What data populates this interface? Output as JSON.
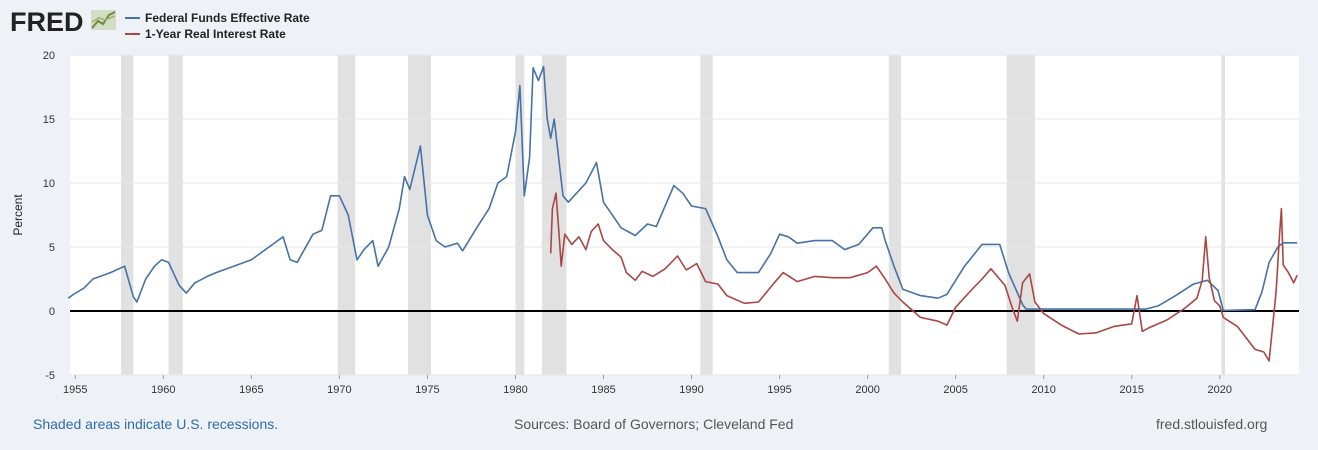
{
  "brand": {
    "name": "FRED"
  },
  "footer": {
    "recession_note": "Shaded areas indicate U.S. recessions.",
    "sources": "Sources: Board of Governors; Cleveland Fed",
    "site": "fred.stlouisfed.org"
  },
  "colors": {
    "ffr": "#4572a7",
    "real": "#aa4643",
    "recession": "#e1e1e1",
    "zero_line": "#000000"
  },
  "chart_data": {
    "type": "line",
    "title": "",
    "xlabel": "",
    "ylabel": "Percent",
    "xlim": [
      1954.7,
      2024.5
    ],
    "ylim": [
      -5,
      20
    ],
    "grid": true,
    "legend_position": "top-left",
    "x_ticks": [
      "1955",
      "1960",
      "1965",
      "1970",
      "1975",
      "1980",
      "1985",
      "1990",
      "1995",
      "2000",
      "2005",
      "2010",
      "2015",
      "2020"
    ],
    "y_ticks": [
      "-5",
      "0",
      "5",
      "10",
      "15",
      "20"
    ],
    "recessions": [
      [
        1957.6,
        1958.3
      ],
      [
        1960.3,
        1961.1
      ],
      [
        1969.9,
        1970.9
      ],
      [
        1973.9,
        1975.2
      ],
      [
        1980.0,
        1980.5
      ],
      [
        1981.5,
        1982.9
      ],
      [
        1990.5,
        1991.2
      ],
      [
        2001.2,
        2001.9
      ],
      [
        2007.9,
        2009.5
      ],
      [
        2020.1,
        2020.3
      ]
    ],
    "series": [
      {
        "name": "Federal Funds Effective Rate",
        "points": [
          [
            1954.6,
            1.0
          ],
          [
            1954.9,
            1.3
          ],
          [
            1955.5,
            1.8
          ],
          [
            1956.0,
            2.5
          ],
          [
            1957.0,
            3.0
          ],
          [
            1957.8,
            3.5
          ],
          [
            1958.3,
            1.1
          ],
          [
            1958.5,
            0.7
          ],
          [
            1959.0,
            2.5
          ],
          [
            1959.5,
            3.5
          ],
          [
            1959.9,
            4.0
          ],
          [
            1960.3,
            3.8
          ],
          [
            1960.9,
            2.0
          ],
          [
            1961.3,
            1.4
          ],
          [
            1961.8,
            2.2
          ],
          [
            1962.5,
            2.7
          ],
          [
            1963.0,
            3.0
          ],
          [
            1964.0,
            3.5
          ],
          [
            1965.0,
            4.0
          ],
          [
            1966.0,
            5.0
          ],
          [
            1966.8,
            5.8
          ],
          [
            1967.2,
            4.0
          ],
          [
            1967.6,
            3.8
          ],
          [
            1968.5,
            6.0
          ],
          [
            1969.0,
            6.3
          ],
          [
            1969.5,
            9.0
          ],
          [
            1970.0,
            9.0
          ],
          [
            1970.5,
            7.5
          ],
          [
            1971.0,
            4.0
          ],
          [
            1971.4,
            4.8
          ],
          [
            1971.9,
            5.5
          ],
          [
            1972.2,
            3.5
          ],
          [
            1972.8,
            5.0
          ],
          [
            1973.4,
            8.0
          ],
          [
            1973.7,
            10.5
          ],
          [
            1974.0,
            9.5
          ],
          [
            1974.6,
            12.9
          ],
          [
            1975.0,
            7.5
          ],
          [
            1975.5,
            5.5
          ],
          [
            1976.0,
            5.0
          ],
          [
            1976.7,
            5.3
          ],
          [
            1977.0,
            4.7
          ],
          [
            1977.8,
            6.5
          ],
          [
            1978.5,
            8.0
          ],
          [
            1979.0,
            10.0
          ],
          [
            1979.5,
            10.5
          ],
          [
            1980.0,
            14.0
          ],
          [
            1980.25,
            17.6
          ],
          [
            1980.5,
            9.0
          ],
          [
            1980.8,
            12.0
          ],
          [
            1981.0,
            19.0
          ],
          [
            1981.3,
            18.0
          ],
          [
            1981.6,
            19.1
          ],
          [
            1981.8,
            15.0
          ],
          [
            1982.0,
            13.5
          ],
          [
            1982.2,
            15.0
          ],
          [
            1982.7,
            9.0
          ],
          [
            1983.0,
            8.5
          ],
          [
            1984.0,
            10.0
          ],
          [
            1984.6,
            11.6
          ],
          [
            1985.0,
            8.5
          ],
          [
            1986.0,
            6.5
          ],
          [
            1986.8,
            5.9
          ],
          [
            1987.5,
            6.8
          ],
          [
            1988.0,
            6.6
          ],
          [
            1989.0,
            9.8
          ],
          [
            1989.5,
            9.2
          ],
          [
            1990.0,
            8.2
          ],
          [
            1990.8,
            8.0
          ],
          [
            1991.5,
            5.8
          ],
          [
            1992.0,
            4.0
          ],
          [
            1992.6,
            3.0
          ],
          [
            1993.8,
            3.0
          ],
          [
            1994.5,
            4.5
          ],
          [
            1995.0,
            6.0
          ],
          [
            1995.5,
            5.8
          ],
          [
            1996.0,
            5.3
          ],
          [
            1997.0,
            5.5
          ],
          [
            1998.0,
            5.5
          ],
          [
            1998.7,
            4.8
          ],
          [
            1999.5,
            5.2
          ],
          [
            2000.3,
            6.5
          ],
          [
            2000.8,
            6.5
          ],
          [
            2001.0,
            5.5
          ],
          [
            2001.5,
            3.5
          ],
          [
            2002.0,
            1.7
          ],
          [
            2003.0,
            1.2
          ],
          [
            2004.0,
            1.0
          ],
          [
            2004.5,
            1.3
          ],
          [
            2005.5,
            3.5
          ],
          [
            2006.5,
            5.2
          ],
          [
            2007.5,
            5.2
          ],
          [
            2008.0,
            3.0
          ],
          [
            2008.8,
            0.5
          ],
          [
            2009.0,
            0.15
          ],
          [
            2015.8,
            0.15
          ],
          [
            2016.5,
            0.4
          ],
          [
            2017.5,
            1.2
          ],
          [
            2018.5,
            2.1
          ],
          [
            2019.3,
            2.4
          ],
          [
            2019.9,
            1.6
          ],
          [
            2020.2,
            0.05
          ],
          [
            2022.0,
            0.1
          ],
          [
            2022.4,
            1.5
          ],
          [
            2022.8,
            3.8
          ],
          [
            2023.3,
            5.0
          ],
          [
            2023.6,
            5.33
          ],
          [
            2024.4,
            5.33
          ]
        ]
      },
      {
        "name": "1-Year Real Interest Rate",
        "points": [
          [
            1982.0,
            4.5
          ],
          [
            1982.1,
            8.0
          ],
          [
            1982.3,
            9.2
          ],
          [
            1982.5,
            5.5
          ],
          [
            1982.6,
            3.5
          ],
          [
            1982.8,
            6.0
          ],
          [
            1983.2,
            5.2
          ],
          [
            1983.6,
            5.8
          ],
          [
            1984.0,
            4.8
          ],
          [
            1984.3,
            6.2
          ],
          [
            1984.7,
            6.8
          ],
          [
            1985.0,
            5.5
          ],
          [
            1985.5,
            4.8
          ],
          [
            1986.0,
            4.2
          ],
          [
            1986.3,
            3.0
          ],
          [
            1986.8,
            2.4
          ],
          [
            1987.2,
            3.1
          ],
          [
            1987.8,
            2.7
          ],
          [
            1988.5,
            3.3
          ],
          [
            1989.2,
            4.3
          ],
          [
            1989.7,
            3.2
          ],
          [
            1990.3,
            3.7
          ],
          [
            1990.8,
            2.3
          ],
          [
            1991.5,
            2.1
          ],
          [
            1992.0,
            1.2
          ],
          [
            1993.0,
            0.6
          ],
          [
            1993.8,
            0.7
          ],
          [
            1994.7,
            2.2
          ],
          [
            1995.2,
            3.0
          ],
          [
            1996.0,
            2.3
          ],
          [
            1997.0,
            2.7
          ],
          [
            1998.0,
            2.6
          ],
          [
            1999.0,
            2.6
          ],
          [
            2000.0,
            3.0
          ],
          [
            2000.5,
            3.5
          ],
          [
            2001.0,
            2.5
          ],
          [
            2001.5,
            1.4
          ],
          [
            2002.0,
            0.7
          ],
          [
            2003.0,
            -0.5
          ],
          [
            2004.0,
            -0.8
          ],
          [
            2004.5,
            -1.1
          ],
          [
            2005.0,
            0.3
          ],
          [
            2006.0,
            1.8
          ],
          [
            2006.5,
            2.5
          ],
          [
            2007.0,
            3.3
          ],
          [
            2007.8,
            2.0
          ],
          [
            2008.2,
            0.3
          ],
          [
            2008.5,
            -0.8
          ],
          [
            2008.8,
            2.2
          ],
          [
            2009.2,
            2.9
          ],
          [
            2009.5,
            0.7
          ],
          [
            2010.0,
            -0.2
          ],
          [
            2011.0,
            -1.1
          ],
          [
            2012.0,
            -1.8
          ],
          [
            2013.0,
            -1.7
          ],
          [
            2014.0,
            -1.2
          ],
          [
            2015.0,
            -1.0
          ],
          [
            2015.3,
            1.2
          ],
          [
            2015.6,
            -1.6
          ],
          [
            2016.0,
            -1.3
          ],
          [
            2017.0,
            -0.7
          ],
          [
            2018.0,
            0.2
          ],
          [
            2018.7,
            1.0
          ],
          [
            2019.0,
            2.4
          ],
          [
            2019.2,
            5.8
          ],
          [
            2019.4,
            2.6
          ],
          [
            2019.7,
            0.8
          ],
          [
            2020.0,
            0.4
          ],
          [
            2020.2,
            -0.5
          ],
          [
            2021.0,
            -1.2
          ],
          [
            2021.5,
            -2.1
          ],
          [
            2022.0,
            -3.0
          ],
          [
            2022.5,
            -3.2
          ],
          [
            2022.8,
            -3.9
          ],
          [
            2023.0,
            -1.2
          ],
          [
            2023.2,
            1.5
          ],
          [
            2023.4,
            6.0
          ],
          [
            2023.5,
            8.0
          ],
          [
            2023.6,
            3.6
          ],
          [
            2023.9,
            3.0
          ],
          [
            2024.2,
            2.2
          ],
          [
            2024.4,
            2.8
          ]
        ]
      }
    ]
  }
}
